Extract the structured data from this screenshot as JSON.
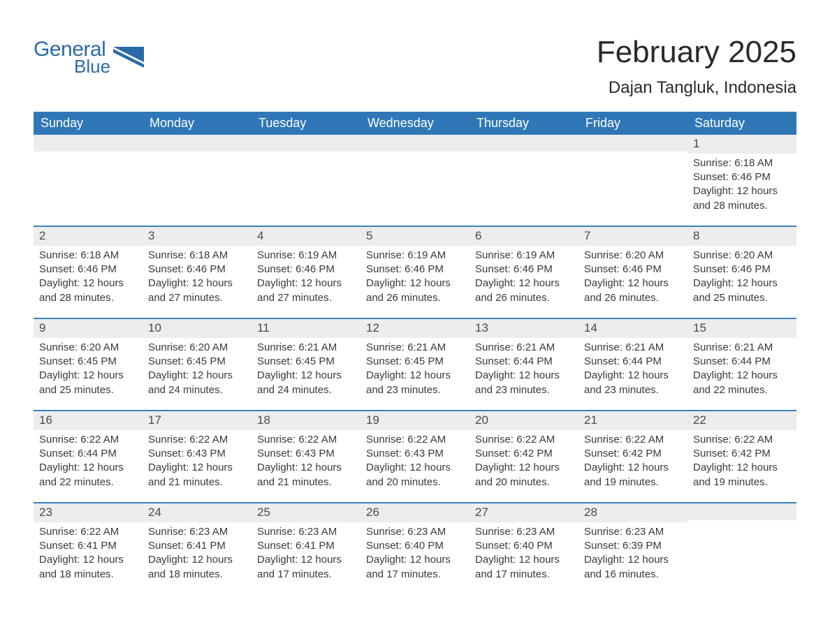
{
  "brand": {
    "word1": "General",
    "word2": "Blue",
    "accent_color": "#2b6aa8"
  },
  "title": "February 2025",
  "location": "Dajan Tangluk, Indonesia",
  "header_bg": "#3077b8",
  "header_fg": "#ffffff",
  "daynum_bg": "#ededed",
  "week_border": "#3a80c0",
  "text_color": "#3a3a3a",
  "columns": [
    "Sunday",
    "Monday",
    "Tuesday",
    "Wednesday",
    "Thursday",
    "Friday",
    "Saturday"
  ],
  "weeks": [
    [
      {
        "day": "",
        "sunrise": "",
        "sunset": "",
        "daylight": ""
      },
      {
        "day": "",
        "sunrise": "",
        "sunset": "",
        "daylight": ""
      },
      {
        "day": "",
        "sunrise": "",
        "sunset": "",
        "daylight": ""
      },
      {
        "day": "",
        "sunrise": "",
        "sunset": "",
        "daylight": ""
      },
      {
        "day": "",
        "sunrise": "",
        "sunset": "",
        "daylight": ""
      },
      {
        "day": "",
        "sunrise": "",
        "sunset": "",
        "daylight": ""
      },
      {
        "day": "1",
        "sunrise": "Sunrise: 6:18 AM",
        "sunset": "Sunset: 6:46 PM",
        "daylight": "Daylight: 12 hours and 28 minutes."
      }
    ],
    [
      {
        "day": "2",
        "sunrise": "Sunrise: 6:18 AM",
        "sunset": "Sunset: 6:46 PM",
        "daylight": "Daylight: 12 hours and 28 minutes."
      },
      {
        "day": "3",
        "sunrise": "Sunrise: 6:18 AM",
        "sunset": "Sunset: 6:46 PM",
        "daylight": "Daylight: 12 hours and 27 minutes."
      },
      {
        "day": "4",
        "sunrise": "Sunrise: 6:19 AM",
        "sunset": "Sunset: 6:46 PM",
        "daylight": "Daylight: 12 hours and 27 minutes."
      },
      {
        "day": "5",
        "sunrise": "Sunrise: 6:19 AM",
        "sunset": "Sunset: 6:46 PM",
        "daylight": "Daylight: 12 hours and 26 minutes."
      },
      {
        "day": "6",
        "sunrise": "Sunrise: 6:19 AM",
        "sunset": "Sunset: 6:46 PM",
        "daylight": "Daylight: 12 hours and 26 minutes."
      },
      {
        "day": "7",
        "sunrise": "Sunrise: 6:20 AM",
        "sunset": "Sunset: 6:46 PM",
        "daylight": "Daylight: 12 hours and 26 minutes."
      },
      {
        "day": "8",
        "sunrise": "Sunrise: 6:20 AM",
        "sunset": "Sunset: 6:46 PM",
        "daylight": "Daylight: 12 hours and 25 minutes."
      }
    ],
    [
      {
        "day": "9",
        "sunrise": "Sunrise: 6:20 AM",
        "sunset": "Sunset: 6:45 PM",
        "daylight": "Daylight: 12 hours and 25 minutes."
      },
      {
        "day": "10",
        "sunrise": "Sunrise: 6:20 AM",
        "sunset": "Sunset: 6:45 PM",
        "daylight": "Daylight: 12 hours and 24 minutes."
      },
      {
        "day": "11",
        "sunrise": "Sunrise: 6:21 AM",
        "sunset": "Sunset: 6:45 PM",
        "daylight": "Daylight: 12 hours and 24 minutes."
      },
      {
        "day": "12",
        "sunrise": "Sunrise: 6:21 AM",
        "sunset": "Sunset: 6:45 PM",
        "daylight": "Daylight: 12 hours and 23 minutes."
      },
      {
        "day": "13",
        "sunrise": "Sunrise: 6:21 AM",
        "sunset": "Sunset: 6:44 PM",
        "daylight": "Daylight: 12 hours and 23 minutes."
      },
      {
        "day": "14",
        "sunrise": "Sunrise: 6:21 AM",
        "sunset": "Sunset: 6:44 PM",
        "daylight": "Daylight: 12 hours and 23 minutes."
      },
      {
        "day": "15",
        "sunrise": "Sunrise: 6:21 AM",
        "sunset": "Sunset: 6:44 PM",
        "daylight": "Daylight: 12 hours and 22 minutes."
      }
    ],
    [
      {
        "day": "16",
        "sunrise": "Sunrise: 6:22 AM",
        "sunset": "Sunset: 6:44 PM",
        "daylight": "Daylight: 12 hours and 22 minutes."
      },
      {
        "day": "17",
        "sunrise": "Sunrise: 6:22 AM",
        "sunset": "Sunset: 6:43 PM",
        "daylight": "Daylight: 12 hours and 21 minutes."
      },
      {
        "day": "18",
        "sunrise": "Sunrise: 6:22 AM",
        "sunset": "Sunset: 6:43 PM",
        "daylight": "Daylight: 12 hours and 21 minutes."
      },
      {
        "day": "19",
        "sunrise": "Sunrise: 6:22 AM",
        "sunset": "Sunset: 6:43 PM",
        "daylight": "Daylight: 12 hours and 20 minutes."
      },
      {
        "day": "20",
        "sunrise": "Sunrise: 6:22 AM",
        "sunset": "Sunset: 6:42 PM",
        "daylight": "Daylight: 12 hours and 20 minutes."
      },
      {
        "day": "21",
        "sunrise": "Sunrise: 6:22 AM",
        "sunset": "Sunset: 6:42 PM",
        "daylight": "Daylight: 12 hours and 19 minutes."
      },
      {
        "day": "22",
        "sunrise": "Sunrise: 6:22 AM",
        "sunset": "Sunset: 6:42 PM",
        "daylight": "Daylight: 12 hours and 19 minutes."
      }
    ],
    [
      {
        "day": "23",
        "sunrise": "Sunrise: 6:22 AM",
        "sunset": "Sunset: 6:41 PM",
        "daylight": "Daylight: 12 hours and 18 minutes."
      },
      {
        "day": "24",
        "sunrise": "Sunrise: 6:23 AM",
        "sunset": "Sunset: 6:41 PM",
        "daylight": "Daylight: 12 hours and 18 minutes."
      },
      {
        "day": "25",
        "sunrise": "Sunrise: 6:23 AM",
        "sunset": "Sunset: 6:41 PM",
        "daylight": "Daylight: 12 hours and 17 minutes."
      },
      {
        "day": "26",
        "sunrise": "Sunrise: 6:23 AM",
        "sunset": "Sunset: 6:40 PM",
        "daylight": "Daylight: 12 hours and 17 minutes."
      },
      {
        "day": "27",
        "sunrise": "Sunrise: 6:23 AM",
        "sunset": "Sunset: 6:40 PM",
        "daylight": "Daylight: 12 hours and 17 minutes."
      },
      {
        "day": "28",
        "sunrise": "Sunrise: 6:23 AM",
        "sunset": "Sunset: 6:39 PM",
        "daylight": "Daylight: 12 hours and 16 minutes."
      },
      {
        "day": "",
        "sunrise": "",
        "sunset": "",
        "daylight": ""
      }
    ]
  ]
}
